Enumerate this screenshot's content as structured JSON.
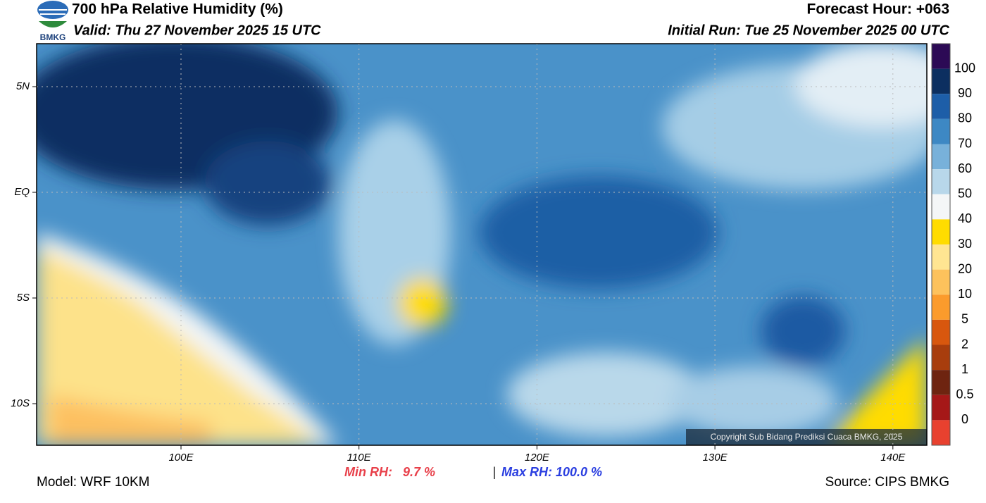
{
  "header": {
    "title": "700 hPa Relative Humidity (%)",
    "valid": "Valid: Thu 27 November 2025 15 UTC",
    "forecast_hour": "Forecast Hour: +063",
    "initial_run": "Initial Run: Tue 25 November 2025 00 UTC",
    "logo_text": "BMKG"
  },
  "map": {
    "lat_labels": [
      "5N",
      "EQ",
      "5S",
      "10S"
    ],
    "lon_labels": [
      "100E",
      "110E",
      "120E",
      "130E",
      "140E"
    ],
    "copyright": "Copyright Sub Bidang Prediksi Cuaca BMKG, 2025"
  },
  "colorbar": {
    "labels": [
      "100",
      "90",
      "80",
      "70",
      "60",
      "50",
      "40",
      "30",
      "20",
      "10",
      "5",
      "2",
      "1",
      "0.5",
      "0"
    ],
    "colors": [
      "#2c0a55",
      "#0c2f60",
      "#1d5ea8",
      "#3d88c4",
      "#78b1da",
      "#b8d7ea",
      "#f4f6f7",
      "#ffdc00",
      "#ffe592",
      "#fdc25c",
      "#fb9b2c",
      "#d8570e",
      "#a83d0d",
      "#6e2410",
      "#a51818",
      "#e8412f"
    ]
  },
  "footer": {
    "model": "Model: WRF 10KM",
    "min_rh": "Min RH:   9.7 %",
    "separator": "|",
    "max_rh": "Max RH: 100.0 %",
    "source": "Source: CIPS BMKG"
  }
}
